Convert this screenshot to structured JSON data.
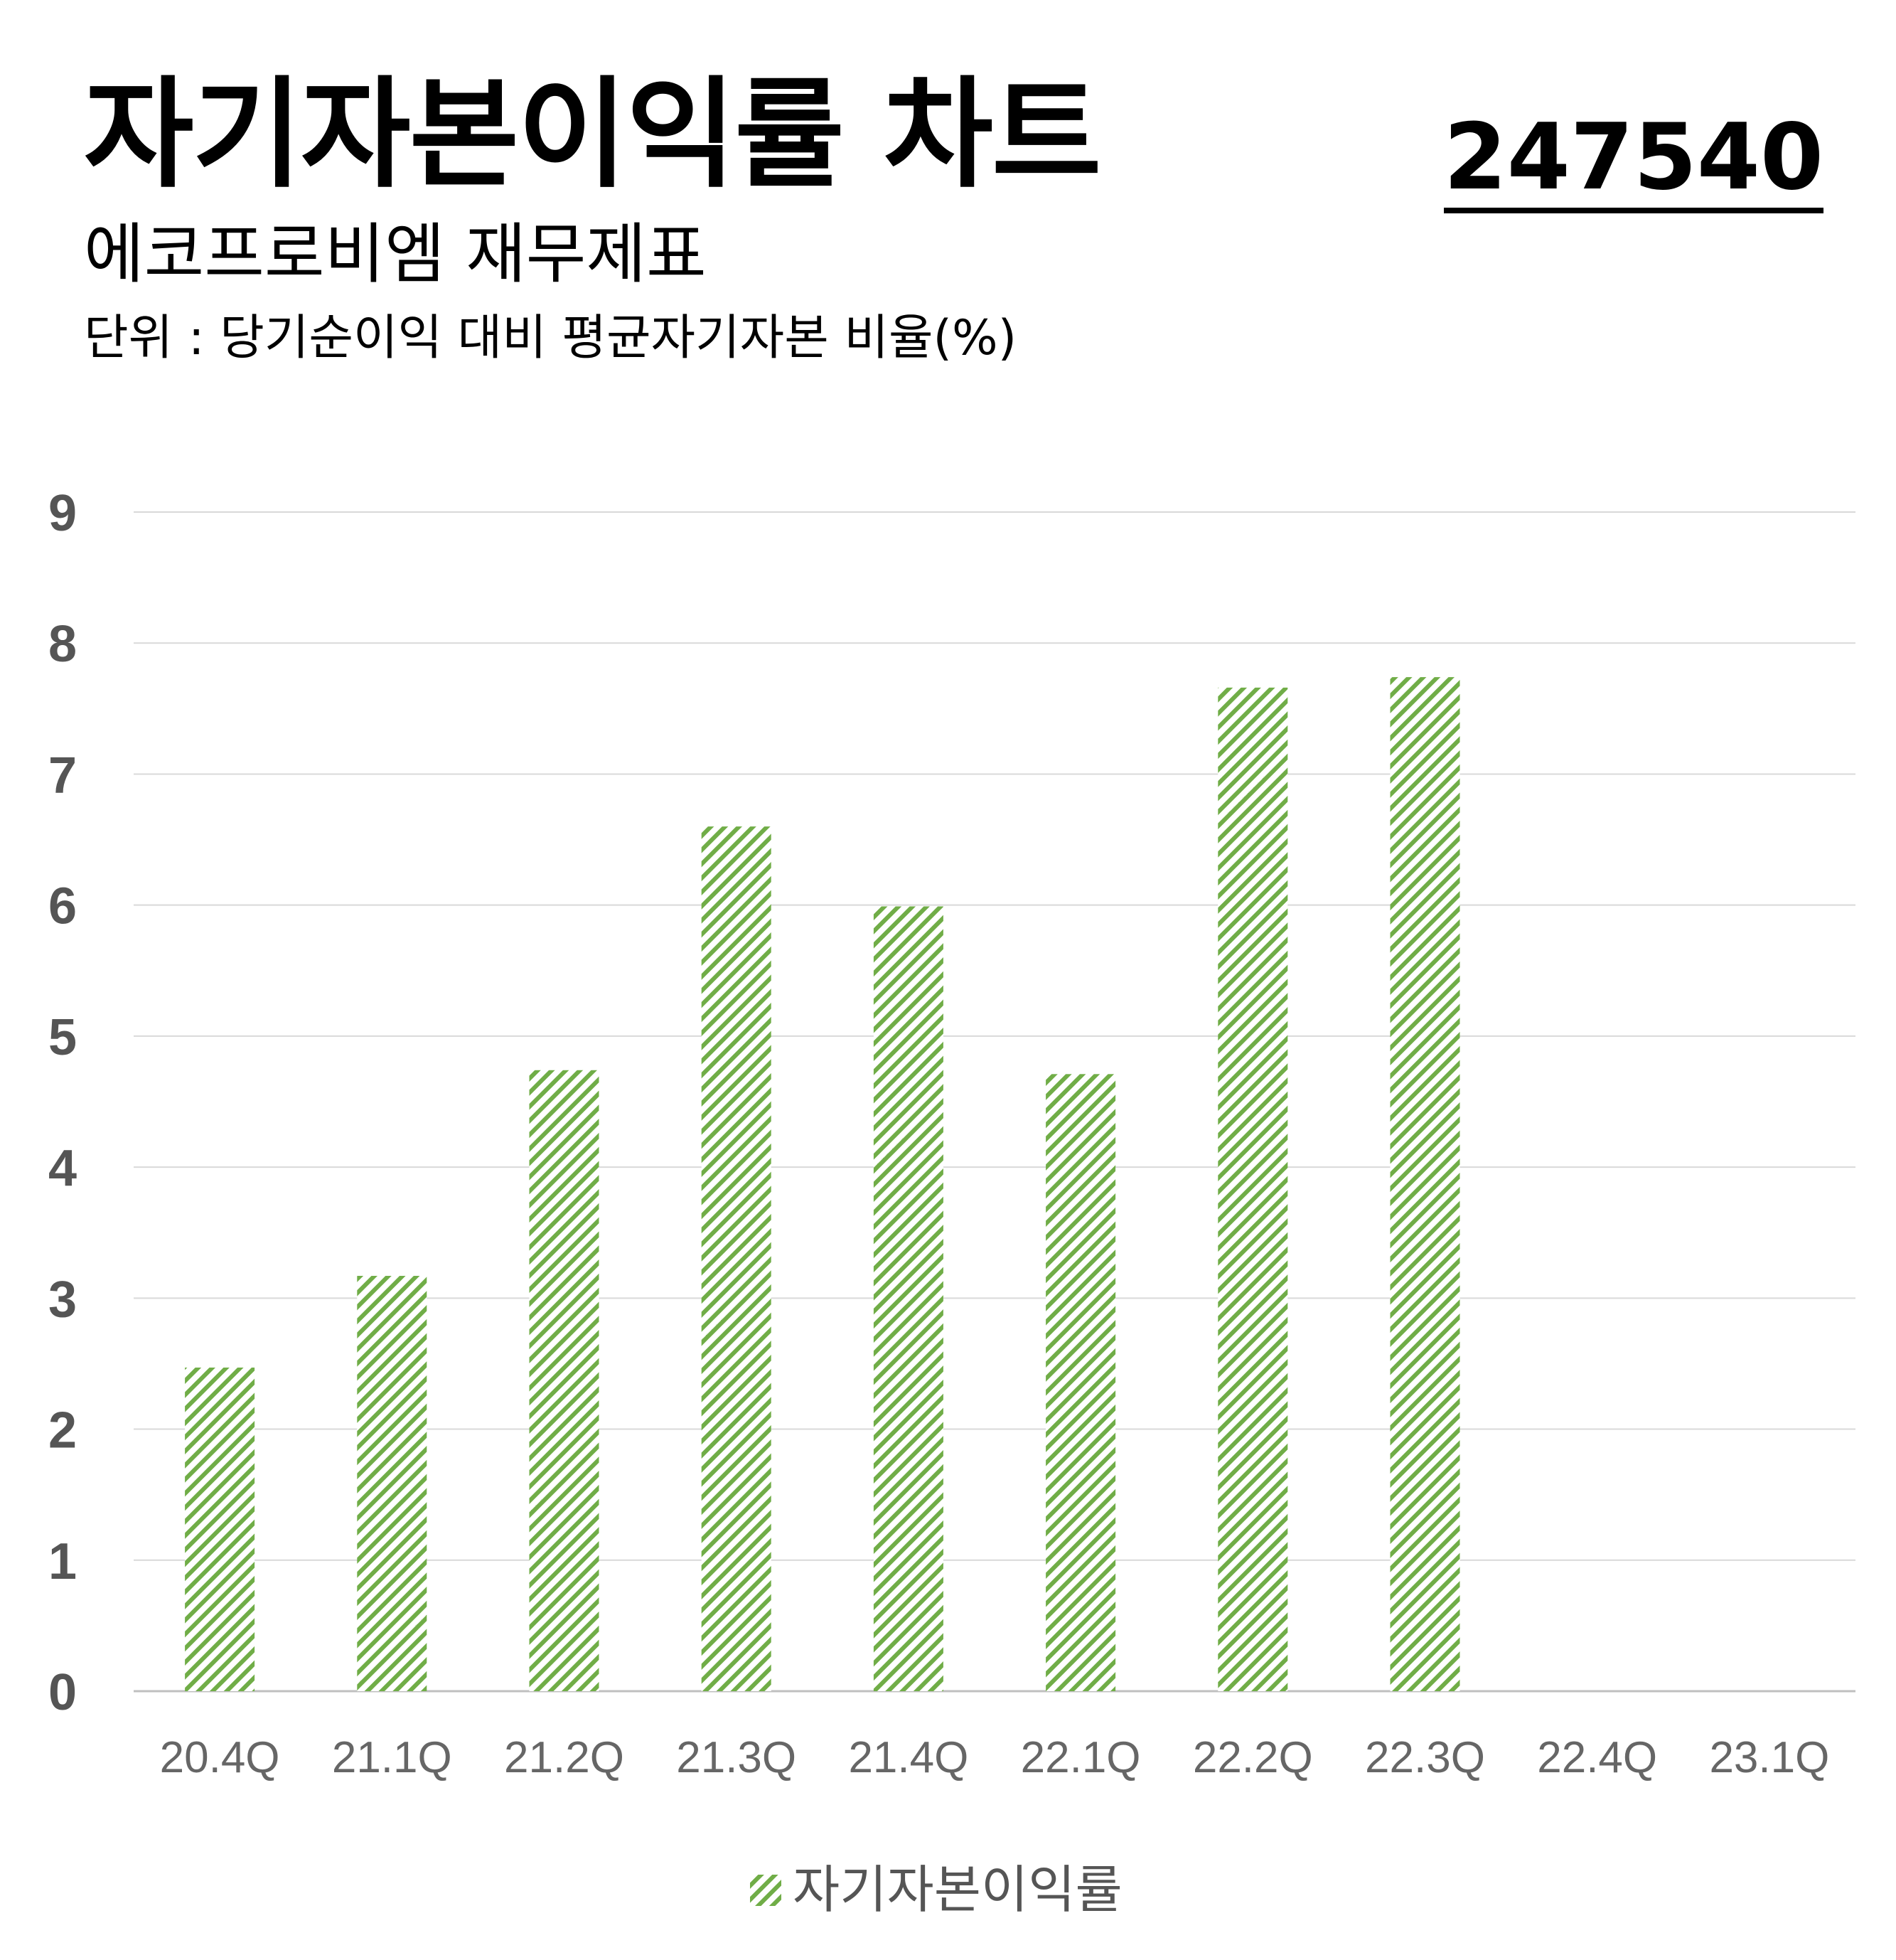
{
  "header": {
    "title": "자기자본이익률 차트",
    "code": "247540",
    "subtitle": "에코프로비엠 재무제표",
    "unit": "단위 : 당기순이익 대비 평균자기자본 비율(%)"
  },
  "colors": {
    "bar": "#70ad47",
    "grid": "#d9d9d9",
    "axis_text": "#595959"
  },
  "chart_data": {
    "type": "bar",
    "categories": [
      "20.4Q",
      "21.1Q",
      "21.2Q",
      "21.3Q",
      "21.4Q",
      "22.1Q",
      "22.2Q",
      "22.3Q",
      "22.4Q",
      "23.1Q"
    ],
    "series": [
      {
        "name": "자기자본이익률",
        "values": [
          2.47,
          3.17,
          4.74,
          6.6,
          5.99,
          4.71,
          7.66,
          7.74,
          null,
          null
        ]
      }
    ],
    "yticks": [
      "0",
      "1",
      "2",
      "3",
      "4",
      "5",
      "6",
      "7",
      "8",
      "9"
    ],
    "ylim": [
      0,
      9
    ],
    "grid": true,
    "legend": "bottom-center",
    "bar_fill": "diagonal-hatch"
  }
}
